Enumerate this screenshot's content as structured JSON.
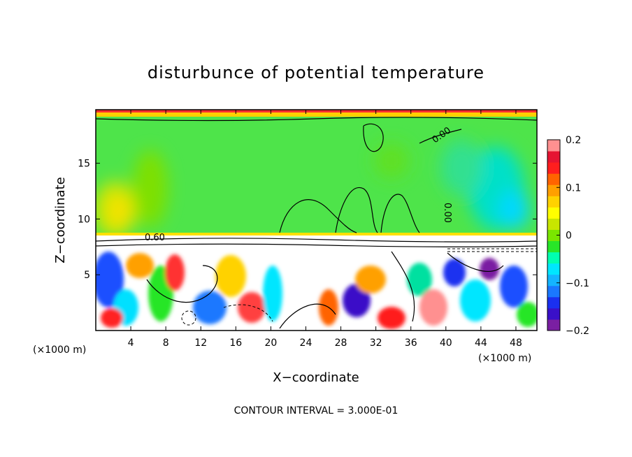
{
  "chart_data": {
    "type": "heatmap",
    "title": "disturbunce of potential temperature",
    "xlabel": "X−coordinate",
    "ylabel": "Z−coordinate",
    "x_unit_left": "(×1000 m)",
    "x_unit_right": "(×1000 m)",
    "xlim": [
      0,
      50.4
    ],
    "ylim": [
      0,
      19.8
    ],
    "xticks": [
      4,
      8,
      12,
      16,
      20,
      24,
      28,
      32,
      36,
      40,
      44,
      48
    ],
    "yticks": [
      5,
      10,
      15
    ],
    "colorbar": {
      "range": [
        -0.2,
        0.2
      ],
      "tick_labels": [
        "0.2",
        "0.1",
        "0",
        "−0.1",
        "−0.2"
      ],
      "tick_values": [
        0.2,
        0.1,
        0,
        -0.1,
        -0.2
      ],
      "colors": [
        "#7a1fa2",
        "#3a10c8",
        "#1a30f0",
        "#1a78ff",
        "#14b4ff",
        "#00e6ff",
        "#00ffb0",
        "#28e628",
        "#7ae600",
        "#c8e600",
        "#ffff00",
        "#ffd200",
        "#ffa000",
        "#ff6400",
        "#ff1e1e",
        "#e61432",
        "#ff9090"
      ]
    },
    "contour_labels": [
      "0.60",
      "0.00",
      "0.00"
    ],
    "contour_interval_text": "CONTOUR INTERVAL = 3.000E-01",
    "grid": false
  }
}
